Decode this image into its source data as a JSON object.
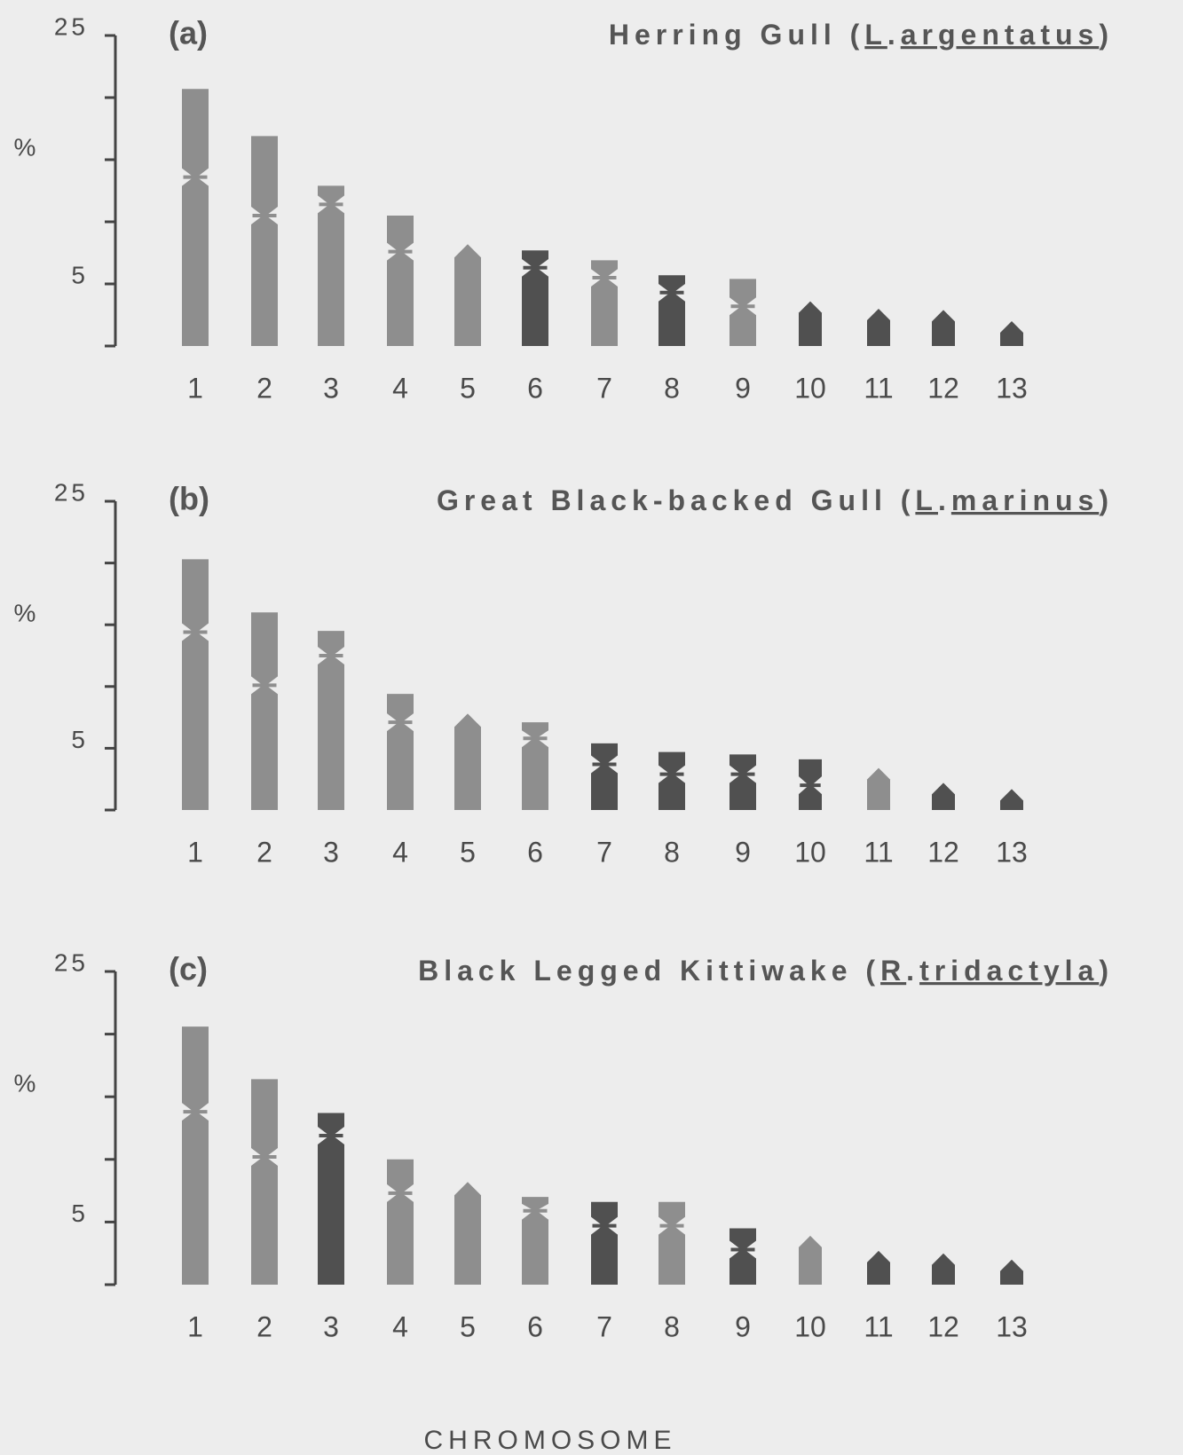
{
  "chart_data": [
    {
      "type": "ideogram",
      "label": "(a)",
      "title": [
        "Herring Gull (",
        "L",
        ".",
        "argentatus",
        ")"
      ],
      "ylabel": "%",
      "categories": [
        "1",
        "2",
        "3",
        "4",
        "5",
        "6",
        "7",
        "8",
        "9",
        "10",
        "11",
        "12",
        "13"
      ],
      "values": [
        20.7,
        16.9,
        12.9,
        10.5,
        8.2,
        7.7,
        6.9,
        5.7,
        5.4,
        3.6,
        3.0,
        2.9,
        2.0
      ],
      "centromere": [
        13.6,
        10.5,
        11.4,
        7.6,
        null,
        6.3,
        5.5,
        4.3,
        3.2,
        null,
        null,
        null,
        null
      ],
      "colors": [
        "#8e8e8e",
        "#8e8e8e",
        "#8e8e8e",
        "#8e8e8e",
        "#8e8e8e",
        "#505050",
        "#8e8e8e",
        "#505050",
        "#8e8e8e",
        "#505050",
        "#505050",
        "#505050",
        "#505050"
      ],
      "ylim": [
        0,
        25
      ],
      "yticks": [
        5,
        25
      ],
      "minor_yticks": [
        0,
        10,
        15,
        20
      ]
    },
    {
      "type": "ideogram",
      "label": "(b)",
      "title": [
        "Great Black-backed Gull (",
        "L",
        ".",
        "marinus",
        ")"
      ],
      "ylabel": "%",
      "categories": [
        "1",
        "2",
        "3",
        "4",
        "5",
        "6",
        "7",
        "8",
        "9",
        "10",
        "11",
        "12",
        "13"
      ],
      "values": [
        20.3,
        16.0,
        14.5,
        9.4,
        7.8,
        7.1,
        5.4,
        4.7,
        4.5,
        4.1,
        3.4,
        2.2,
        1.7
      ],
      "centromere": [
        14.4,
        10.1,
        12.5,
        7.1,
        null,
        5.8,
        3.7,
        2.9,
        2.9,
        2.0,
        null,
        null,
        null
      ],
      "colors": [
        "#8e8e8e",
        "#8e8e8e",
        "#8e8e8e",
        "#8e8e8e",
        "#8e8e8e",
        "#8e8e8e",
        "#505050",
        "#505050",
        "#505050",
        "#505050",
        "#8e8e8e",
        "#505050",
        "#505050"
      ],
      "ylim": [
        0,
        25
      ],
      "yticks": [
        5,
        25
      ],
      "minor_yticks": [
        0,
        10,
        15,
        20
      ]
    },
    {
      "type": "ideogram",
      "label": "(c)",
      "title": [
        "Black Legged Kittiwake (",
        "R",
        ".",
        "tridactyla",
        ")"
      ],
      "ylabel": "%",
      "categories": [
        "1",
        "2",
        "3",
        "4",
        "5",
        "6",
        "7",
        "8",
        "9",
        "10",
        "11",
        "12",
        "13"
      ],
      "values": [
        20.6,
        16.4,
        13.7,
        10.0,
        8.2,
        7.0,
        6.6,
        6.6,
        4.5,
        3.9,
        2.7,
        2.5,
        2.0
      ],
      "centromere": [
        13.8,
        10.2,
        11.9,
        7.3,
        null,
        5.9,
        4.7,
        4.7,
        2.8,
        null,
        null,
        null,
        null
      ],
      "colors": [
        "#8e8e8e",
        "#8e8e8e",
        "#505050",
        "#8e8e8e",
        "#8e8e8e",
        "#8e8e8e",
        "#505050",
        "#8e8e8e",
        "#505050",
        "#8e8e8e",
        "#505050",
        "#505050",
        "#505050"
      ],
      "ylim": [
        0,
        25
      ],
      "yticks": [
        5,
        25
      ],
      "minor_yticks": [
        0,
        10,
        15,
        20
      ]
    }
  ],
  "xlabel": "CHROMOSOME"
}
